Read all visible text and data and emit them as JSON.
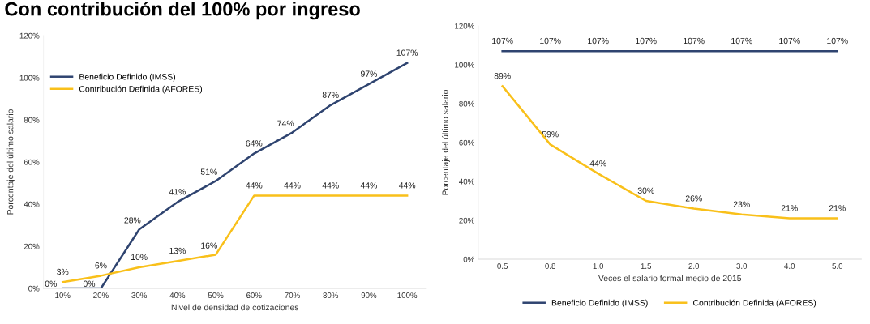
{
  "chart_data": [
    {
      "type": "line",
      "title": "Con contribución del 100% por ingreso",
      "xlabel": "Nivel de densidad de cotizaciones",
      "ylabel": "Porcentaje del último salario",
      "categories": [
        "10%",
        "20%",
        "30%",
        "40%",
        "50%",
        "60%",
        "70%",
        "80%",
        "90%",
        "100%"
      ],
      "series": [
        {
          "name": "Beneficio Definido (IMSS)",
          "color": "#2f4470",
          "values": [
            0,
            0,
            28,
            41,
            51,
            64,
            74,
            87,
            97,
            107
          ],
          "value_labels": [
            "0%",
            "0%",
            "28%",
            "41%",
            "51%",
            "64%",
            "74%",
            "87%",
            "97%",
            "107%"
          ]
        },
        {
          "name": "Contribución Definida (AFORES)",
          "color": "#f9c01a",
          "values": [
            3,
            6,
            10,
            13,
            16,
            44,
            44,
            44,
            44,
            44
          ],
          "value_labels": [
            "3%",
            "6%",
            "10%",
            "13%",
            "16%",
            "44%",
            "44%",
            "44%",
            "44%",
            "44%"
          ]
        }
      ],
      "ylim": [
        0,
        120
      ],
      "yticks": [
        {
          "value": 0,
          "label": "0%"
        },
        {
          "value": 20,
          "label": "20%"
        },
        {
          "value": 40,
          "label": "40%"
        },
        {
          "value": 60,
          "label": "60%"
        },
        {
          "value": 80,
          "label": "80%"
        },
        {
          "value": 100,
          "label": "100%"
        },
        {
          "value": 120,
          "label": "120%"
        }
      ],
      "grid": false,
      "legend": "top left",
      "marker": "none",
      "line_style": "solid"
    },
    {
      "type": "line",
      "xlabel": "Veces el salario formal medio de 2015",
      "ylabel": "Porcentaje del último salario",
      "categories": [
        "0.5",
        "0.8",
        "1.0",
        "1.5",
        "2.0",
        "3.0",
        "4.0",
        "5.0"
      ],
      "series": [
        {
          "name": "Beneficio Definido (IMSS)",
          "color": "#2f4470",
          "values": [
            107,
            107,
            107,
            107,
            107,
            107,
            107,
            107
          ],
          "value_labels": [
            "107%",
            "107%",
            "107%",
            "107%",
            "107%",
            "107%",
            "107%",
            "107%"
          ]
        },
        {
          "name": "Contribución Definida (AFORES)",
          "color": "#f9c01a",
          "values": [
            89,
            59,
            44,
            30,
            26,
            23,
            21,
            21
          ],
          "value_labels": [
            "89%",
            "59%",
            "44%",
            "30%",
            "26%",
            "23%",
            "21%",
            "21%"
          ]
        }
      ],
      "ylim": [
        0,
        120
      ],
      "yticks": [
        {
          "value": 0,
          "label": "0%"
        },
        {
          "value": 20,
          "label": "20%"
        },
        {
          "value": 40,
          "label": "40%"
        },
        {
          "value": 60,
          "label": "60%"
        },
        {
          "value": 80,
          "label": "80%"
        },
        {
          "value": 100,
          "label": "100%"
        },
        {
          "value": 120,
          "label": "120%"
        }
      ],
      "grid": false,
      "legend": "bottom",
      "marker": "none",
      "line_style": "solid"
    }
  ]
}
